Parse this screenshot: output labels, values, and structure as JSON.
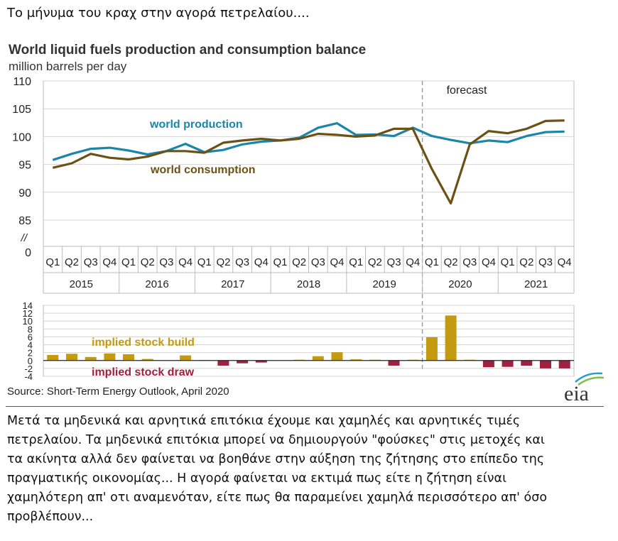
{
  "post": {
    "heading": "Το μήνυμα του κραχ στην αγορά πετρελαίου....",
    "body_lines": [
      "Μετά τα μηδενικά και αρνητικά επιτόκια έχουμε και χαμηλές και αρνητικές τιμές",
      "πετρελαίου. Τα μηδενικά επιτόκια μπορεί να δημιουργούν \"φούσκες\" στις μετοχές και",
      "τα ακίνητα αλλά δεν φαίνεται να βοηθάνε στην αύξηση της ζήτησης στο επίπεδο της",
      "πραγματικής οικονομίας... Η αγορά φαίνεται να εκτιμά πως είτε η ζήτηση είναι",
      "χαμηλότερη απ' οτι αναμενόταν, είτε πως θα παραμείνει χαμηλά περισσότερο απ' όσο",
      "προβλέπουν..."
    ]
  },
  "source": "Source: Short-Term Energy Outlook, April 2020",
  "logo_text": "eia",
  "chart_data": [
    {
      "type": "line",
      "title": "World liquid fuels production and consumption balance",
      "subtitle": "million barrels per day",
      "categories": [
        "Q1",
        "Q2",
        "Q3",
        "Q4",
        "Q1",
        "Q2",
        "Q3",
        "Q4",
        "Q1",
        "Q2",
        "Q3",
        "Q4",
        "Q1",
        "Q2",
        "Q3",
        "Q4",
        "Q1",
        "Q2",
        "Q3",
        "Q4",
        "Q1",
        "Q2",
        "Q3",
        "Q4",
        "Q1",
        "Q2",
        "Q3",
        "Q4"
      ],
      "years": [
        "2015",
        "2016",
        "2017",
        "2018",
        "2019",
        "2020",
        "2021"
      ],
      "y_ticks": [
        "110",
        "105",
        "100",
        "95",
        "90",
        "85",
        "0"
      ],
      "axis_break": "//",
      "ylim": [
        85,
        110
      ],
      "grid": true,
      "forecast_label": "forecast",
      "forecast_start_index": 20,
      "series": [
        {
          "name": "world production",
          "color": "#1a86a8",
          "values": [
            95.8,
            96.9,
            97.8,
            98.0,
            97.5,
            96.8,
            97.4,
            98.7,
            97.2,
            97.6,
            98.6,
            99.1,
            99.3,
            99.8,
            101.6,
            102.4,
            100.3,
            100.4,
            100.1,
            101.6,
            100.1,
            99.4,
            98.8,
            99.3,
            99.0,
            100.1,
            100.8,
            100.9
          ]
        },
        {
          "name": "world consumption",
          "color": "#6b5214",
          "values": [
            94.4,
            95.2,
            96.9,
            96.2,
            95.9,
            96.4,
            97.4,
            97.4,
            97.1,
            98.9,
            99.3,
            99.6,
            99.3,
            99.6,
            100.5,
            100.3,
            100.0,
            100.2,
            101.4,
            101.4,
            94.2,
            88.0,
            98.6,
            101.0,
            100.6,
            101.4,
            102.8,
            102.9
          ]
        }
      ]
    },
    {
      "type": "bar",
      "y_ticks": [
        "14",
        "12",
        "10",
        "8",
        "6",
        "4",
        "2",
        "0",
        "-2",
        "-4"
      ],
      "ylim": [
        -4,
        14
      ],
      "grid": true,
      "legend": [
        {
          "name": "implied stock  build",
          "color": "#c49a10"
        },
        {
          "name": "implied stock draw",
          "color": "#a02040"
        }
      ],
      "values": [
        1.4,
        1.7,
        0.9,
        1.8,
        1.6,
        0.4,
        0.0,
        1.3,
        0.1,
        -1.3,
        -0.7,
        -0.5,
        0.0,
        0.2,
        1.1,
        2.1,
        0.3,
        0.2,
        -1.3,
        0.2,
        5.9,
        11.4,
        0.2,
        -1.7,
        -1.6,
        -1.3,
        -2.0,
        -2.0
      ],
      "build_color": "#c49a10",
      "draw_color": "#a02040"
    }
  ]
}
